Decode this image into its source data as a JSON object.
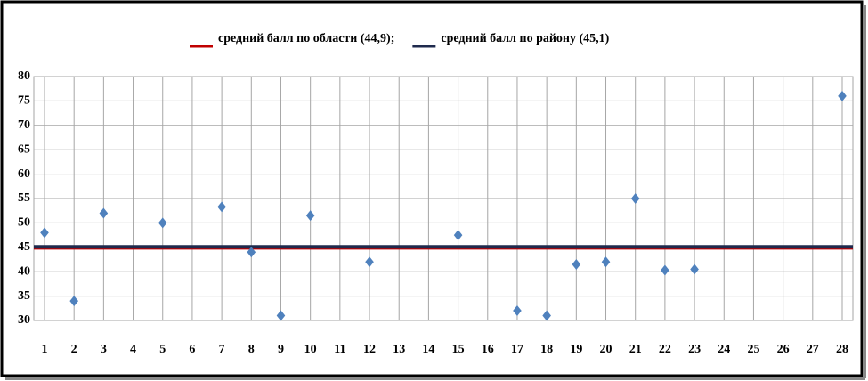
{
  "chart_data": {
    "type": "scatter",
    "x": [
      1,
      2,
      3,
      5,
      7,
      8,
      9,
      10,
      12,
      15,
      17,
      18,
      19,
      20,
      21,
      22,
      23,
      28
    ],
    "values": [
      48,
      34,
      52,
      50,
      53.3,
      44,
      31,
      51.5,
      42,
      47.5,
      32,
      31,
      41.5,
      42,
      55,
      40.3,
      40.5,
      76
    ],
    "color": "#4f81bd",
    "xlim": [
      1,
      28
    ],
    "xticks": [
      1,
      2,
      3,
      4,
      5,
      6,
      7,
      8,
      9,
      10,
      11,
      12,
      13,
      14,
      15,
      16,
      17,
      18,
      19,
      20,
      21,
      22,
      23,
      24,
      25,
      26,
      27,
      28
    ],
    "ylim": [
      30,
      80
    ],
    "yticks": [
      30,
      35,
      40,
      45,
      50,
      55,
      60,
      65,
      70,
      75,
      80
    ],
    "grid": true,
    "reference_lines": [
      {
        "name": "средний балл по области (44,9);",
        "color": "#c00000",
        "value": 44.9
      },
      {
        "name": "средний балл по району (45,1)",
        "color": "#1f2a4d",
        "value": 45.1
      }
    ]
  }
}
